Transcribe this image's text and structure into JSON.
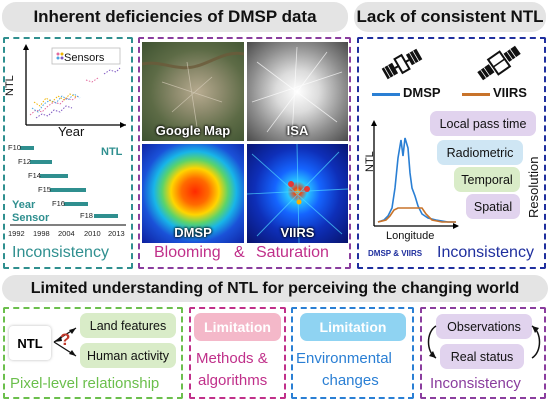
{
  "top_left": {
    "title": "Inherent deficiencies of DMSP data",
    "chart": {
      "legend": "Sensors",
      "ylabel": "NTL",
      "xlabel": "Year"
    },
    "timeline": {
      "sensors": [
        "F10",
        "F12",
        "F14",
        "F15",
        "F16",
        "F18"
      ],
      "ntl_label": "NTL",
      "year_label": "Year",
      "sensor_label": "Sensor",
      "years": [
        "1992",
        "1998",
        "2004",
        "2010",
        "2013"
      ]
    },
    "caption_left": "Inconsistency",
    "images": {
      "google": "Google Map",
      "isa": "ISA",
      "dmsp": "DMSP",
      "viirs": "VIIRS"
    },
    "caption_mid_a": "Blooming",
    "caption_mid_amp": "&",
    "caption_mid_b": "Saturation"
  },
  "top_right": {
    "title": "Lack of consistent NTL",
    "legend_dmsp": "DMSP",
    "legend_viirs": "VIIRS",
    "ylabel": "NTL",
    "xlabel": "Longitude",
    "resolution": "Resolution",
    "pills": [
      "Local pass time",
      "Radiometric",
      "Temporal",
      "Spatial"
    ],
    "footnote": "DMSP & VIIRS",
    "caption": "Inconsistency"
  },
  "bottom": {
    "title": "Limited understanding of NTL for perceiving the changing world",
    "ntl": "NTL",
    "question": "?",
    "land": "Land features",
    "human": "Human activity",
    "pixel_caption": "Pixel-level relationship",
    "limitation1": "Limitation",
    "methods_line1": "Methods &",
    "methods_line2": "algorithms",
    "limitation2": "Limitation",
    "env_line1": "Environmental",
    "env_line2": "changes",
    "observations": "Observations",
    "real_status": "Real status",
    "inconsistency": "Inconsistency"
  },
  "colors": {
    "teal": "#2f8f8f",
    "green": "#6bbf4c",
    "purple": "#8a3d9e",
    "pink": "#c0308a",
    "navy": "#1f2f9e",
    "blue": "#2a7fd4",
    "pink_fill": "#f4b8c9",
    "blue_fill": "#8fd3f2",
    "green_fill": "#d9ecc8",
    "lilac_fill": "#e1d3ee",
    "lightblue_fill": "#cfe6f4"
  }
}
